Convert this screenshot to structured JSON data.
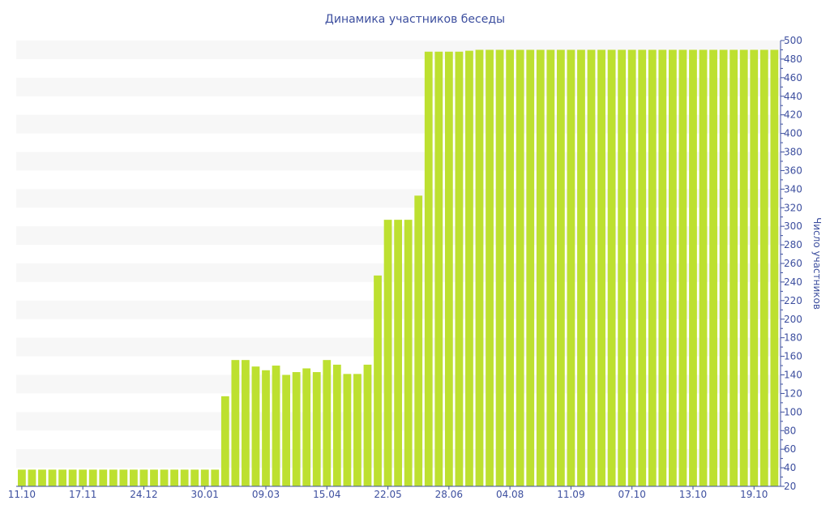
{
  "chart_data": {
    "type": "bar",
    "title": "Динамика участников беседы",
    "ylabel": "Число участников",
    "xlabel": "",
    "ylim": [
      20,
      500
    ],
    "yticks": [
      20,
      40,
      60,
      80,
      100,
      120,
      140,
      160,
      180,
      200,
      220,
      240,
      260,
      280,
      300,
      320,
      340,
      360,
      380,
      400,
      420,
      440,
      460,
      480,
      500
    ],
    "xtick_labels": [
      "11.10",
      "17.11",
      "24.12",
      "30.01",
      "09.03",
      "15.04",
      "22.05",
      "28.06",
      "04.08",
      "11.09",
      "07.10",
      "13.10",
      "19.10"
    ],
    "xtick_every": 6,
    "grid": "alternating horizontal bands",
    "values": [
      38,
      38,
      38,
      38,
      38,
      38,
      38,
      38,
      38,
      38,
      38,
      38,
      38,
      38,
      38,
      38,
      38,
      38,
      38,
      38,
      117,
      156,
      156,
      149,
      145,
      150,
      140,
      143,
      147,
      143,
      156,
      151,
      141,
      141,
      151,
      247,
      307,
      307,
      307,
      333,
      488,
      488,
      488,
      488,
      489,
      490,
      490,
      490,
      490,
      490,
      490,
      490,
      490,
      490,
      490,
      490,
      490,
      490,
      490,
      490,
      490,
      490,
      490,
      490,
      490,
      490,
      490,
      490,
      490,
      490,
      490,
      490,
      490,
      490,
      490
    ],
    "colors": {
      "bar": "#bde030",
      "axis": "#3d4f9f",
      "band": "#f7f7f7"
    }
  }
}
